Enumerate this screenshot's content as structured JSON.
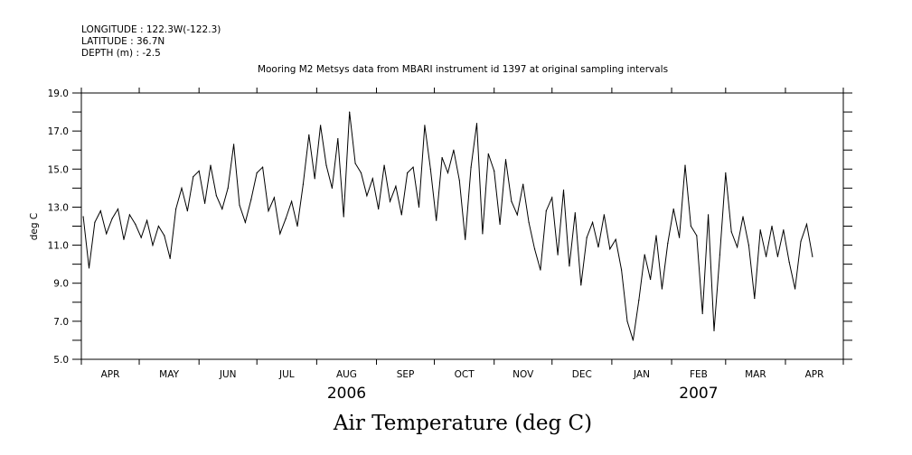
{
  "header": {
    "longitude": "LONGITUDE : 122.3W(-122.3)",
    "latitude": "LATITUDE : 36.7N",
    "depth": "DEPTH (m) : -2.5"
  },
  "chart_data": {
    "type": "line",
    "title": "Mooring M2 Metsys data from MBARI instrument id 1397 at original sampling intervals",
    "xlabel": "Air Temperature (deg C)",
    "ylabel": "deg C",
    "ylim": [
      5.0,
      19.0
    ],
    "yticks": [
      "5.0",
      "7.0",
      "9.0",
      "11.0",
      "13.0",
      "15.0",
      "17.0",
      "19.0"
    ],
    "xlim_days_from_2006_04_01": [
      0,
      395
    ],
    "month_labels": [
      "APR",
      "MAY",
      "JUN",
      "JUL",
      "AUG",
      "SEP",
      "OCT",
      "NOV",
      "DEC",
      "JAN",
      "FEB",
      "MAR",
      "APR"
    ],
    "month_start_days": [
      0,
      30,
      61,
      91,
      122,
      153,
      183,
      214,
      244,
      275,
      306,
      334,
      365,
      395
    ],
    "year_labels": [
      {
        "label": "2006",
        "month_index": 4
      },
      {
        "label": "2007",
        "month_index": 10
      }
    ],
    "series_start_day": 1,
    "series_interval_days": 3,
    "series": [
      {
        "name": "Air Temperature",
        "color": "#000000",
        "values": [
          12.5,
          9.8,
          12.2,
          12.8,
          11.6,
          12.4,
          12.9,
          11.3,
          12.6,
          12.1,
          11.4,
          12.3,
          11.0,
          12.0,
          11.5,
          10.3,
          12.9,
          14.0,
          12.8,
          14.6,
          14.9,
          13.2,
          15.2,
          13.6,
          12.9,
          14.0,
          16.3,
          13.1,
          12.2,
          13.4,
          14.8,
          15.1,
          12.8,
          13.5,
          11.6,
          12.4,
          13.3,
          12.0,
          14.2,
          16.8,
          14.5,
          17.3,
          15.2,
          14.0,
          16.6,
          12.5,
          18.0,
          15.3,
          14.8,
          13.6,
          14.5,
          12.9,
          15.2,
          13.3,
          14.1,
          12.6,
          14.8,
          15.1,
          13.0,
          17.3,
          15.0,
          12.3,
          15.6,
          14.8,
          16.0,
          14.4,
          11.3,
          15.1,
          17.4,
          11.6,
          15.8,
          14.9,
          12.1,
          15.5,
          13.3,
          12.6,
          14.2,
          12.2,
          10.8,
          9.7,
          12.8,
          13.5,
          10.5,
          13.9,
          9.9,
          12.7,
          8.9,
          11.4,
          12.2,
          10.9,
          12.6,
          10.8,
          11.3,
          9.7,
          7.0,
          6.0,
          8.1,
          10.5,
          9.2,
          11.5,
          8.7,
          11.1,
          12.9,
          11.4,
          15.2,
          12.0,
          11.5,
          7.4,
          12.6,
          6.5,
          10.5,
          14.8,
          11.7,
          10.9,
          12.5,
          11.0,
          8.2,
          11.8,
          10.4,
          12.0,
          10.4,
          11.8,
          10.1,
          8.7,
          11.2,
          12.1,
          10.4
        ]
      }
    ]
  }
}
